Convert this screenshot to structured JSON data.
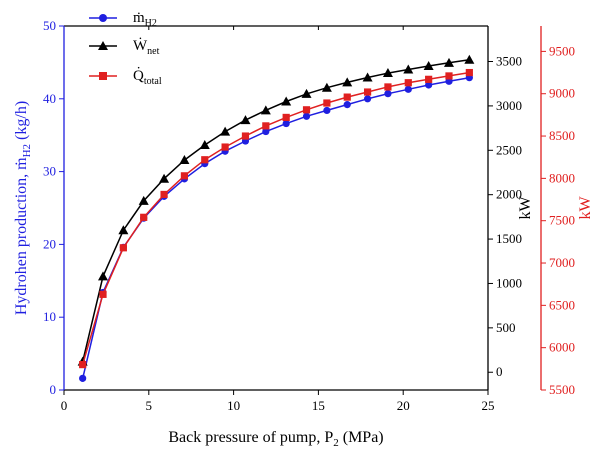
{
  "chart_data": {
    "type": "line",
    "xlabel": "Back pressure of pump, P",
    "xlabel_sub": "2",
    "xlabel_unit": "(MPa)",
    "ylabel_left": "Hydrohen production, ṁ",
    "ylabel_left_sub": "H2",
    "ylabel_left_unit": "(kg/h)",
    "ylabel_right1": "kW",
    "ylabel_right2": "kW",
    "xlim": [
      0,
      25
    ],
    "xticks": [
      "0",
      "5",
      "10",
      "15",
      "20",
      "25"
    ],
    "ylim_left": [
      0,
      50
    ],
    "yticks_left": [
      "0",
      "10",
      "20",
      "30",
      "40",
      "50"
    ],
    "ylim_right1": [
      -200,
      3900
    ],
    "yticks_right1": [
      "0",
      "500",
      "1000",
      "1500",
      "2000",
      "2500",
      "3000",
      "3500"
    ],
    "ylim_right2": [
      5500,
      9800
    ],
    "yticks_right2": [
      "5500",
      "6000",
      "6500",
      "7000",
      "7500",
      "8000",
      "8500",
      "9000",
      "9500"
    ],
    "legend_position": "top-left",
    "colors": {
      "left_axis": "#1f1fe0",
      "right2_axis": "#e02020",
      "black": "#000000"
    },
    "x": [
      1.1,
      2.3,
      3.5,
      4.7,
      5.9,
      7.1,
      8.3,
      9.5,
      10.7,
      11.9,
      13.1,
      14.3,
      15.5,
      16.7,
      17.9,
      19.1,
      20.3,
      21.5,
      22.7,
      23.9
    ],
    "series": [
      {
        "name": "ṁ",
        "name_sub": "H2",
        "axis": "left",
        "color": "#1f1fe0",
        "marker": "circle",
        "values": [
          1.6,
          13.4,
          19.6,
          23.6,
          26.6,
          29.0,
          31.1,
          32.8,
          34.2,
          35.5,
          36.6,
          37.6,
          38.4,
          39.2,
          40.0,
          40.7,
          41.3,
          41.9,
          42.4,
          42.9
        ]
      },
      {
        "name": "Ẇ",
        "name_sub": "net",
        "axis": "right1",
        "color": "#000000",
        "marker": "triangle",
        "values": [
          120,
          1080,
          1600,
          1930,
          2180,
          2390,
          2560,
          2710,
          2840,
          2950,
          3050,
          3135,
          3205,
          3265,
          3320,
          3370,
          3410,
          3450,
          3485,
          3520
        ]
      },
      {
        "name": "Q̇",
        "name_sub": "total",
        "axis": "right2",
        "color": "#e02020",
        "marker": "square",
        "values": [
          5800,
          6630,
          7180,
          7540,
          7810,
          8030,
          8220,
          8370,
          8500,
          8620,
          8720,
          8810,
          8890,
          8960,
          9020,
          9080,
          9130,
          9170,
          9210,
          9250
        ]
      }
    ]
  }
}
